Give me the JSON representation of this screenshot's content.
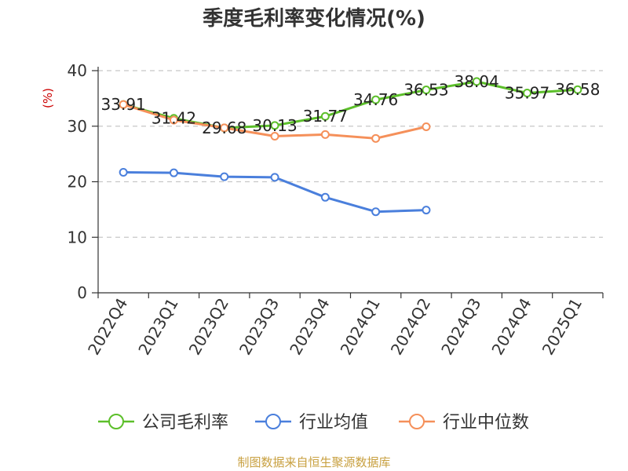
{
  "chart_data": {
    "type": "line",
    "title": "季度毛利率变化情况(%)",
    "ylabel": "(%)",
    "xlabel": "",
    "categories": [
      "2022Q4",
      "2023Q1",
      "2023Q2",
      "2023Q3",
      "2023Q4",
      "2024Q1",
      "2024Q2",
      "2024Q3",
      "2024Q4",
      "2025Q1"
    ],
    "ylim": [
      0,
      40
    ],
    "yticks": [
      "0",
      "10",
      "20",
      "30",
      "40"
    ],
    "grid": true,
    "legend_position": "bottom",
    "series": [
      {
        "name": "公司毛利率",
        "color": "#5cbf2a",
        "values": [
          33.91,
          31.42,
          29.68,
          30.13,
          31.77,
          34.76,
          36.53,
          38.04,
          35.97,
          36.58
        ],
        "labels": [
          "33.91",
          "31.42",
          "29.68",
          "30.13",
          "31.77",
          "34.76",
          "36.53",
          "38.04",
          "35.97",
          "36.58"
        ]
      },
      {
        "name": "行业均值",
        "color": "#4a7fdc",
        "values": [
          21.7,
          21.6,
          20.9,
          20.8,
          17.2,
          14.6,
          14.9,
          null,
          null,
          null
        ]
      },
      {
        "name": "行业中位数",
        "color": "#f5905a",
        "values": [
          33.9,
          31.1,
          29.7,
          28.2,
          28.5,
          27.8,
          29.9,
          null,
          null,
          null
        ]
      }
    ]
  },
  "source": "制图数据来自恒生聚源数据库"
}
